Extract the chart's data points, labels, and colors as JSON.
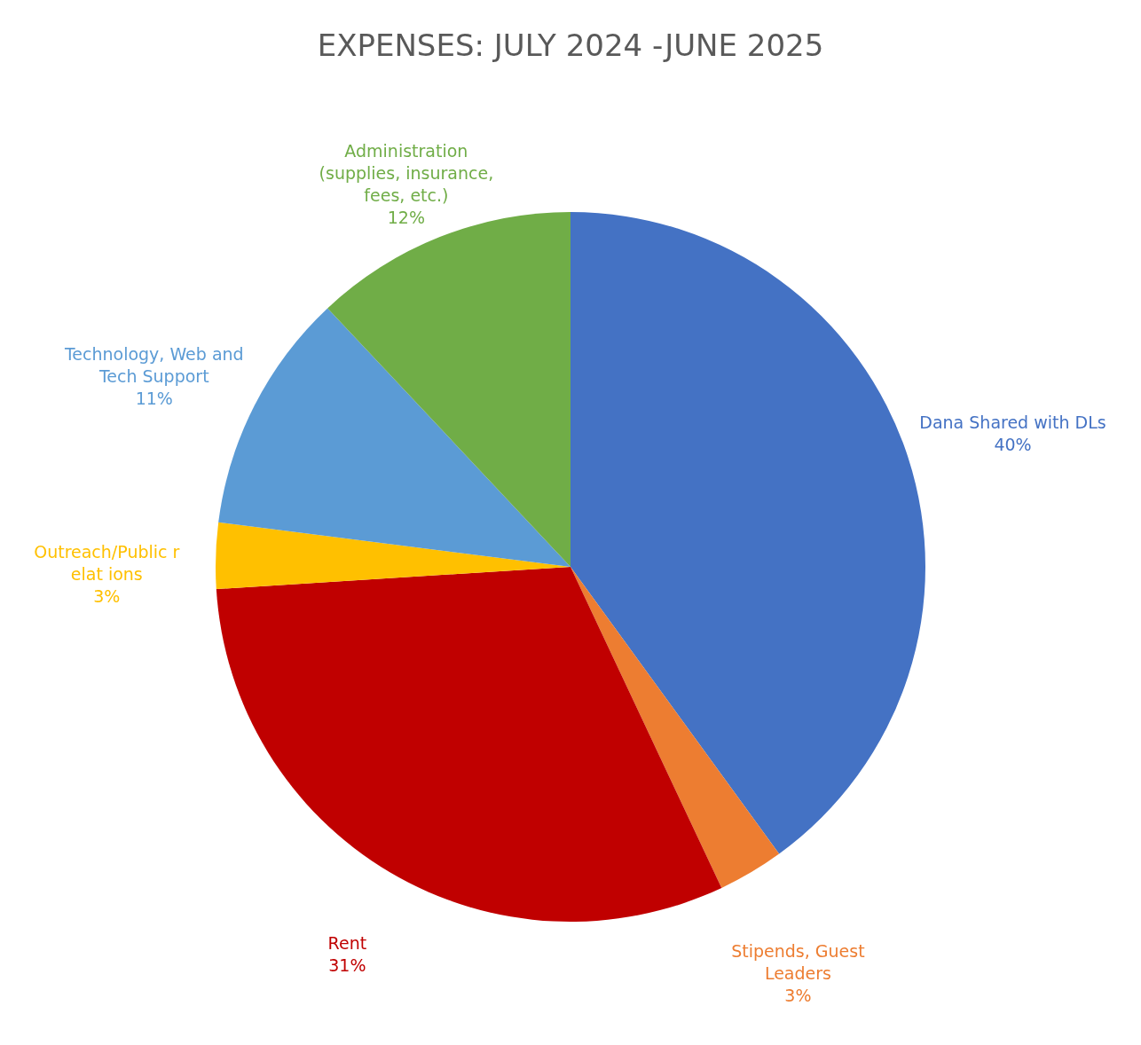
{
  "chart_data": {
    "type": "pie",
    "title": "EXPENSES: JULY 2024 -JUNE 2025",
    "categories": [
      "Dana Shared with DLs",
      "Stipends, Guest Leaders",
      "Rent",
      "Outreach/Public r elat ions",
      "Technology, Web and Tech Support",
      "Administration (supplies, insurance, fees, etc.)"
    ],
    "values": [
      40,
      3,
      31,
      3,
      11,
      12
    ],
    "value_labels": [
      "40%",
      "3%",
      "31%",
      "3%",
      "11%",
      "12%"
    ],
    "colors": [
      "#4472c4",
      "#ed7d31",
      "#c00000",
      "#ffc000",
      "#5b9bd5",
      "#70ad47"
    ]
  }
}
